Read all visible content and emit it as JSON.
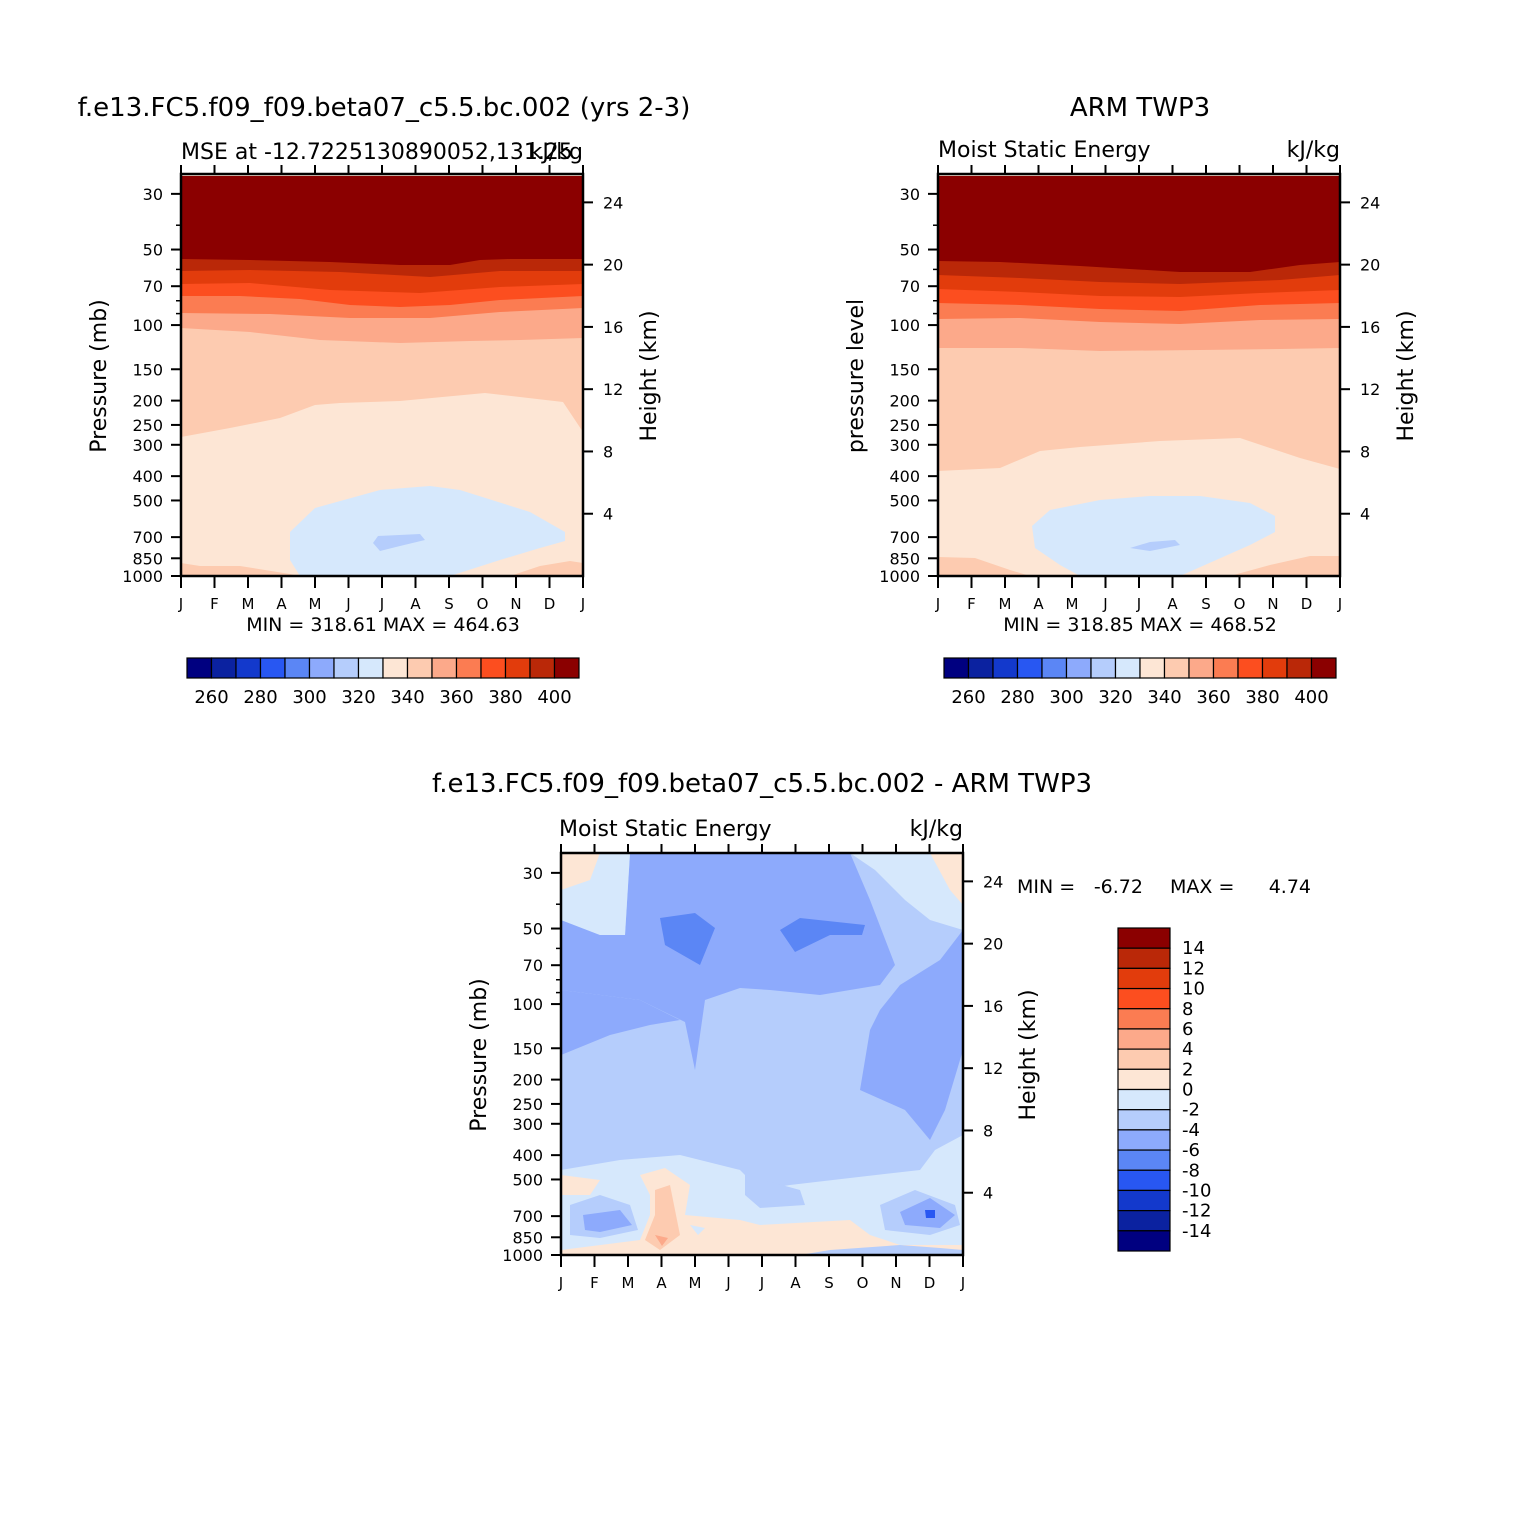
{
  "colors": {
    "warm": [
      "#fde6d5",
      "#fdcbb0",
      "#fca98a",
      "#fb7c52",
      "#fc4e1f",
      "#e23c0c",
      "#ba2808",
      "#8b0000"
    ],
    "cool": [
      "#d6e8fc",
      "#b5cdfc",
      "#8daafc",
      "#5b86f5",
      "#2857f2",
      "#1339cc",
      "#0b22a0",
      "#000080"
    ],
    "frame": "#000000"
  },
  "chart_data": [
    {
      "type": "heatmap",
      "title": "f.e13.FC5.f09_f09.beta07_c5.5.bc.002 (yrs 2-3)",
      "subtitle_left": "MSE at -12.7225130890052,131.25",
      "subtitle_right": "kJ/kg",
      "ylabel": "Pressure (mb)",
      "y2label": "Height (km)",
      "x_ticks": [
        "J",
        "F",
        "M",
        "A",
        "M",
        "J",
        "J",
        "A",
        "S",
        "O",
        "N",
        "D",
        "J"
      ],
      "y_ticks": [
        "30",
        "50",
        "70",
        "100",
        "150",
        "200",
        "250",
        "300",
        "400",
        "500",
        "700",
        "850",
        "1000"
      ],
      "y2_ticks": [
        "24",
        "20",
        "16",
        "12",
        "8",
        "4"
      ],
      "stats": "MIN = 318.61  MAX = 464.63",
      "colorbar_labels": [
        "260",
        "280",
        "300",
        "320",
        "340",
        "360",
        "380",
        "400"
      ],
      "y_top_mb": 25
    },
    {
      "type": "heatmap",
      "title": "ARM TWP3",
      "subtitle_left": "Moist Static Energy",
      "subtitle_right": "kJ/kg",
      "ylabel": "pressure level",
      "y2label": "Height (km)",
      "x_ticks": [
        "J",
        "F",
        "M",
        "A",
        "M",
        "J",
        "J",
        "A",
        "S",
        "O",
        "N",
        "D",
        "J"
      ],
      "y_ticks": [
        "30",
        "50",
        "70",
        "100",
        "150",
        "200",
        "250",
        "300",
        "400",
        "500",
        "700",
        "850",
        "1000"
      ],
      "y2_ticks": [
        "24",
        "20",
        "16",
        "12",
        "8",
        "4"
      ],
      "stats": "MIN = 318.85  MAX = 468.52",
      "colorbar_labels": [
        "260",
        "280",
        "300",
        "320",
        "340",
        "360",
        "380",
        "400"
      ],
      "y_top_mb": 25
    },
    {
      "type": "heatmap",
      "title": "f.e13.FC5.f09_f09.beta07_c5.5.bc.002 - ARM TWP3",
      "subtitle_left": "Moist Static Energy",
      "subtitle_right": "kJ/kg",
      "ylabel": "Pressure (mb)",
      "y2label": "Height (km)",
      "x_ticks": [
        "J",
        "F",
        "M",
        "A",
        "M",
        "J",
        "J",
        "A",
        "S",
        "O",
        "N",
        "D",
        "J"
      ],
      "y_ticks": [
        "30",
        "50",
        "70",
        "100",
        "150",
        "200",
        "250",
        "300",
        "400",
        "500",
        "700",
        "850",
        "1000"
      ],
      "y2_ticks": [
        "24",
        "20",
        "16",
        "12",
        "8",
        "4"
      ],
      "stats_min_label": "MIN =",
      "stats_min": "-6.72",
      "stats_max_label": "MAX =",
      "stats_max": "4.74",
      "colorbar_labels": [
        "14",
        "12",
        "10",
        "8",
        "6",
        "4",
        "2",
        "0",
        "-2",
        "-4",
        "-6",
        "-8",
        "-10",
        "-12",
        "-14"
      ],
      "y_top_mb": 25
    }
  ]
}
